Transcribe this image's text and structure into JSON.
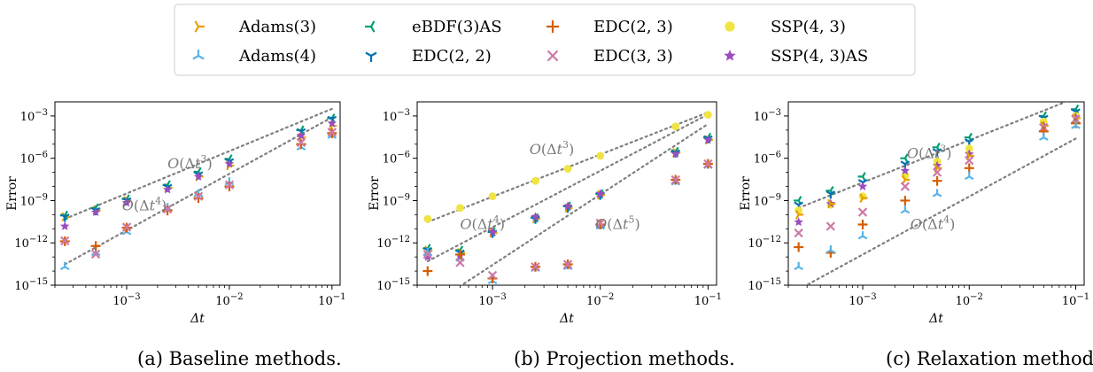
{
  "colors": {
    "Adams(3)": "#E69F00",
    "Adams(4)": "#56B4E9",
    "eBDF(3)AS": "#009E73",
    "EDC(2,2)": "#0072B2",
    "EDC(2,3)": "#D55E00",
    "EDC(3,3)": "#CC79A7",
    "SSP(4,3)": "#F0E442",
    "SSP(4,3)AS": "#9B4DBE",
    "reference": "#7f7f7f"
  },
  "legend": [
    {
      "label": "Adams(3)",
      "marker": "tri-right"
    },
    {
      "label": "eBDF(3)AS",
      "marker": "tri-left"
    },
    {
      "label": "EDC(2, 3)",
      "marker": "plus"
    },
    {
      "label": "SSP(4, 3)",
      "marker": "circle"
    },
    {
      "label": "Adams(4)",
      "marker": "tri-up"
    },
    {
      "label": "EDC(2, 2)",
      "marker": "tri-down"
    },
    {
      "label": "EDC(3, 3)",
      "marker": "x"
    },
    {
      "label": "SSP(4, 3)AS",
      "marker": "star"
    }
  ],
  "chart_data": [
    {
      "type": "scatter",
      "caption": "(a) Baseline methods.",
      "xlabel": "Δt",
      "ylabel": "Error",
      "xscale": "log",
      "yscale": "log",
      "xlim": [
        0.0002,
        0.12
      ],
      "ylim": [
        1e-15,
        0.01
      ],
      "x_ticks": [
        "10⁻³",
        "10⁻²",
        "10⁻¹"
      ],
      "y_ticks": [
        "10⁻³",
        "10⁻⁶",
        "10⁻⁹",
        "10⁻¹²",
        "10⁻¹⁵"
      ],
      "x": [
        0.00025,
        0.0005,
        0.001,
        0.0025,
        0.005,
        0.01,
        0.05,
        0.1
      ],
      "series": [
        {
          "name": "Adams(3)",
          "values": [
            7e-11,
            2e-10,
            1e-09,
            8e-09,
            5e-08,
            3e-07,
            3e-05,
            0.0002
          ]
        },
        {
          "name": "Adams(4)",
          "values": [
            2e-14,
            2e-13,
            6e-12,
            3e-10,
            3e-09,
            2e-08,
            6e-06,
            4e-05
          ]
        },
        {
          "name": "eBDF(3)AS",
          "values": [
            9e-11,
            3e-10,
            1.3e-09,
            1.3e-08,
            1.1e-07,
            9e-07,
            0.0001,
            0.0007
          ]
        },
        {
          "name": "EDC(2,2)",
          "values": [
            7e-11,
            2e-10,
            1e-09,
            9e-09,
            7e-08,
            6e-07,
            8e-05,
            0.0006
          ]
        },
        {
          "name": "EDC(2,3)",
          "values": [
            1.3e-12,
            6e-13,
            1.2e-11,
            2e-10,
            1.5e-09,
            1e-08,
            1e-05,
            6e-05
          ]
        },
        {
          "name": "EDC(3,3)",
          "values": [
            1.4e-12,
            1.6e-13,
            1.3e-11,
            2.5e-10,
            2e-09,
            1.3e-08,
            1.3e-05,
            7e-05
          ]
        },
        {
          "name": "SSP(4,3)AS",
          "values": [
            1.5e-11,
            1.5e-10,
            7e-10,
            6e-09,
            5e-08,
            4e-07,
            4e-05,
            0.0003
          ]
        }
      ],
      "reference_lines": [
        {
          "label": "O(Δt³)",
          "x": [
            0.00025,
            0.1
          ],
          "y": [
            5e-11,
            0.0032
          ]
        },
        {
          "label": "O(Δt⁴)",
          "x": [
            0.00025,
            0.1
          ],
          "y": [
            3e-14,
            0.0008
          ]
        }
      ]
    },
    {
      "type": "scatter",
      "caption": "(b) Projection methods.",
      "xlabel": "Δt",
      "ylabel": "Error",
      "xscale": "log",
      "yscale": "log",
      "xlim": [
        0.0002,
        0.12
      ],
      "ylim": [
        1e-15,
        0.01
      ],
      "x_ticks": [
        "10⁻³",
        "10⁻²",
        "10⁻¹"
      ],
      "y_ticks": [
        "10⁻³",
        "10⁻⁶",
        "10⁻⁹",
        "10⁻¹²",
        "10⁻¹⁵"
      ],
      "x": [
        0.00025,
        0.0005,
        0.001,
        0.0025,
        0.005,
        0.01,
        0.05,
        0.1
      ],
      "series": [
        {
          "name": "SSP(4,3)",
          "values": [
            5e-11,
            3e-10,
            2e-09,
            2.5e-08,
            1.8e-07,
            1.5e-06,
            0.00018,
            0.0012
          ]
        },
        {
          "name": "Adams(3)",
          "values": [
            3e-13,
            2e-13,
            5e-12,
            5e-11,
            3e-10,
            2.5e-09,
            2.5e-06,
            2e-05
          ]
        },
        {
          "name": "eBDF(3)AS",
          "values": [
            4e-13,
            3e-13,
            6e-12,
            6e-11,
            4e-10,
            3e-09,
            3e-06,
            3e-05
          ]
        },
        {
          "name": "EDC(2,2)",
          "values": [
            3e-13,
            2e-13,
            5e-12,
            5e-11,
            3e-10,
            2.5e-09,
            2.5e-06,
            2.5e-05
          ]
        },
        {
          "name": "SSP(4,3)AS",
          "values": [
            1e-13,
            1.3e-13,
            6e-12,
            7e-11,
            4e-10,
            3e-09,
            2e-06,
            2e-05
          ]
        },
        {
          "name": "Adams(4)",
          "values": [
            2e-13,
            8e-14,
            2e-15,
            1.5e-14,
            2e-14,
            1.5e-11,
            2e-08,
            3e-07
          ]
        },
        {
          "name": "EDC(2,3)",
          "values": [
            1e-14,
            1.5e-13,
            3e-15,
            2e-14,
            3e-14,
            2e-11,
            3e-08,
            4e-07
          ]
        },
        {
          "name": "EDC(3,3)",
          "values": [
            1.5e-13,
            4e-14,
            5e-15,
            2e-14,
            3e-14,
            2.5e-11,
            3e-08,
            4e-07
          ]
        }
      ],
      "reference_lines": [
        {
          "label": "O(Δt³)",
          "x": [
            0.00025,
            0.1
          ],
          "y": [
            3e-11,
            0.0018
          ]
        },
        {
          "label": "O(Δt⁴)",
          "x": [
            0.00025,
            0.1
          ],
          "y": [
            5e-14,
            0.0013
          ]
        },
        {
          "label": "O(Δt⁵)",
          "x": [
            0.00045,
            0.1
          ],
          "y": [
            5e-16,
            0.00027
          ]
        }
      ]
    },
    {
      "type": "scatter",
      "caption": "(c) Relaxation methods.",
      "xlabel": "Δt",
      "ylabel": "Error",
      "xscale": "log",
      "yscale": "log",
      "xlim": [
        0.0002,
        0.12
      ],
      "ylim": [
        1e-15,
        0.01
      ],
      "x_ticks": [
        "10⁻³",
        "10⁻²",
        "10⁻¹"
      ],
      "y_ticks": [
        "10⁻³",
        "10⁻⁶",
        "10⁻⁹",
        "10⁻¹²",
        "10⁻¹⁵"
      ],
      "x": [
        0.00025,
        0.0005,
        0.001,
        0.0025,
        0.005,
        0.01,
        0.05,
        0.1
      ],
      "series": [
        {
          "name": "eBDF(3)AS",
          "values": [
            1e-09,
            5e-09,
            5e-08,
            1e-06,
            6e-06,
            3e-05,
            0.001,
            0.003
          ]
        },
        {
          "name": "EDC(2,2)",
          "values": [
            5e-10,
            3e-09,
            2e-08,
            4e-07,
            3e-06,
            1.5e-05,
            0.0007,
            0.002
          ]
        },
        {
          "name": "SSP(4,3)",
          "values": [
            2e-10,
            5e-10,
            2e-09,
            6e-08,
            6e-07,
            5e-06,
            0.0004,
            0.001
          ]
        },
        {
          "name": "SSP(4,3)AS",
          "values": [
            3e-11,
            6e-10,
            1e-08,
            1.3e-07,
            3e-07,
            2e-06,
            0.0002,
            0.0008
          ]
        },
        {
          "name": "Adams(3)",
          "values": [
            1e-10,
            6e-10,
            1.5e-09,
            3e-08,
            2e-07,
            1.5e-06,
            0.0002,
            0.0007
          ]
        },
        {
          "name": "EDC(3,3)",
          "values": [
            5e-12,
            1.5e-11,
            1.5e-10,
            1e-08,
            1e-07,
            7e-07,
            0.00015,
            0.0006
          ]
        },
        {
          "name": "EDC(2,3)",
          "values": [
            5e-13,
            2e-13,
            2e-11,
            1e-09,
            2.5e-08,
            2e-07,
            8e-05,
            0.0003
          ]
        },
        {
          "name": "Adams(4)",
          "values": [
            2e-14,
            3e-13,
            3e-12,
            2e-10,
            3e-09,
            5e-08,
            3e-05,
            0.0002
          ]
        }
      ],
      "reference_lines": [
        {
          "label": "O(Δt³)",
          "x": [
            0.00025,
            0.1
          ],
          "y": [
            3e-10,
            0.019
          ]
        },
        {
          "label": "O(Δt⁴)",
          "x": [
            0.00025,
            0.1
          ],
          "y": [
            5e-16,
            2.5e-05
          ]
        }
      ]
    }
  ],
  "annotations": [
    [
      {
        "text": "O(Δt³)",
        "at": [
          0.0025,
          2e-07
        ]
      },
      {
        "text": "O(Δt⁴)",
        "at": [
          0.0009,
          2e-10
        ]
      }
    ],
    [
      {
        "text": "O(Δt³)",
        "at": [
          0.0022,
          2e-06
        ]
      },
      {
        "text": "O(Δt⁴)",
        "at": [
          0.0005,
          1e-11
        ]
      },
      {
        "text": "O(Δt⁵)",
        "at": [
          0.009,
          1e-11
        ]
      }
    ],
    [
      {
        "text": "O(Δt³)",
        "at": [
          0.0026,
          1e-06
        ]
      },
      {
        "text": "O(Δt⁴)",
        "at": [
          0.0028,
          1e-11
        ]
      }
    ]
  ]
}
